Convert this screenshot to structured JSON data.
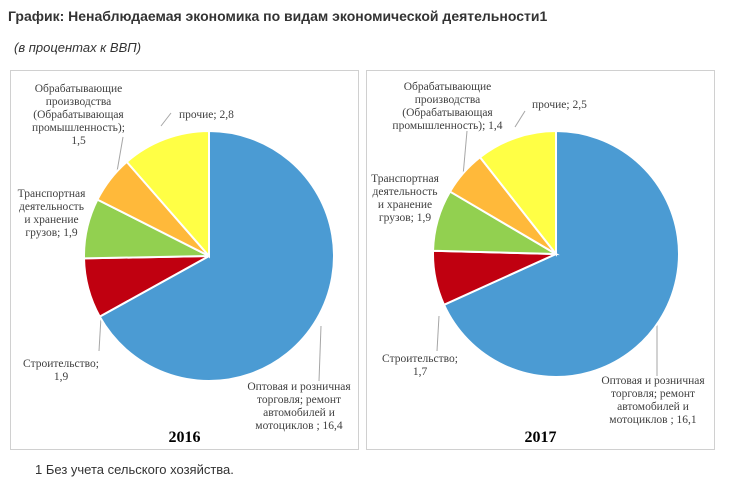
{
  "title": "График: Ненаблюдаемая экономика по видам экономической деятельности1",
  "subtitle": "(в процентах к ВВП)",
  "footnote": "1 Без учета сельского хозяйства.",
  "chart_data": [
    {
      "type": "pie",
      "title": "2016",
      "unit": "% of GDP",
      "categories": [
        "Оптовая и розничная торговля; ремонт автомобилей и мотоциклов",
        "Строительство",
        "Транспортная деятельность и хранение грузов",
        "Обрабатывающие производства (Обрабатывающая промышленность)",
        "прочие"
      ],
      "values": [
        16.4,
        1.9,
        1.9,
        1.5,
        2.8
      ],
      "labels": [
        "Оптовая и розничная\nторговля; ремонт\nавтомобилей и\nмотоциклов ; 16,4",
        "Строительство;\n1,9",
        "Транспортная\nдеятельность\nи хранение\nгрузов; 1,9",
        "Обрабатывающие\nпроизводства\n(Обрабатывающая\nпромышленность);\n1,5",
        "прочие; 2,8"
      ],
      "colors": [
        "#4b9bd3",
        "#c00010",
        "#92d050",
        "#ffb93a",
        "#ffff45"
      ]
    },
    {
      "type": "pie",
      "title": "2017",
      "unit": "% of GDP",
      "categories": [
        "Оптовая и розничная торговля; ремонт автомобилей и мотоциклов",
        "Строительство",
        "Транспортная деятельность и хранение грузов",
        "Обрабатывающие производства (Обрабатывающая промышленность)",
        "прочие"
      ],
      "values": [
        16.1,
        1.7,
        1.9,
        1.4,
        2.5
      ],
      "labels": [
        "Оптовая и розничная\nторговля; ремонт\nавтомобилей и\nмотоциклов ; 16,1",
        "Строительство;\n1,7",
        "Транспортная\nдеятельность\nи хранение\nгрузов; 1,9",
        "Обрабатывающие\nпроизводства\n(Обрабатывающая\nпромышленность); 1,4",
        "прочие; 2,5"
      ],
      "colors": [
        "#4b9bd3",
        "#c00010",
        "#92d050",
        "#ffb93a",
        "#ffff45"
      ]
    }
  ]
}
